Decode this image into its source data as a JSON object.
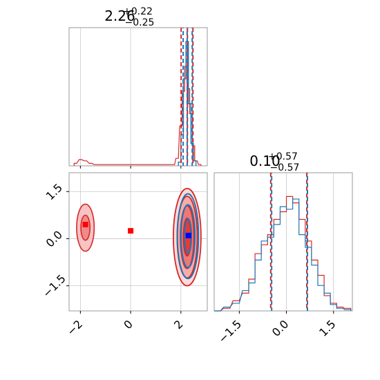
{
  "chart_data": {
    "type": "corner",
    "colors": {
      "series_a": "#d62728",
      "series_b": "#1f77b4",
      "marker_a": "#ff0000",
      "marker_b": "#0000ff"
    },
    "series": [
      {
        "color_key": "series_a"
      },
      {
        "color_key": "series_b"
      }
    ],
    "panels": {
      "top_left": {
        "title_main": "2.26",
        "title_sup": "+0.22",
        "title_sub": "−0.25",
        "xlim": [
          -2.45,
          3.05
        ],
        "quantiles": {
          "series_a": [
            2.01,
            2.26,
            2.48
          ],
          "series_b": [
            2.09,
            2.25,
            2.45
          ]
        },
        "hist_a": [
          [
            -2.2,
            0.02
          ],
          [
            -2.0,
            0.05
          ],
          [
            -1.8,
            0.04
          ],
          [
            -1.6,
            0.02
          ],
          [
            -1.4,
            0.01
          ],
          [
            1.7,
            0.01
          ],
          [
            1.85,
            0.06
          ],
          [
            2.0,
            0.32
          ],
          [
            2.1,
            0.6
          ],
          [
            2.2,
            0.8
          ],
          [
            2.3,
            0.62
          ],
          [
            2.4,
            0.42
          ],
          [
            2.5,
            0.16
          ],
          [
            2.6,
            0.04
          ],
          [
            2.75,
            0.01
          ]
        ],
        "hist_b": [
          [
            1.95,
            0.03
          ],
          [
            2.05,
            0.25
          ],
          [
            2.15,
            0.7
          ],
          [
            2.25,
            1.0
          ],
          [
            2.35,
            0.5
          ],
          [
            2.45,
            0.18
          ],
          [
            2.55,
            0.04
          ]
        ]
      },
      "bottom_left": {
        "xlim": [
          -2.45,
          3.05
        ],
        "ylim": [
          -2.3,
          2.1
        ],
        "xticks": [
          -2,
          0,
          2
        ],
        "xtick_labels": [
          "−2",
          "0",
          "2"
        ],
        "yticks": [
          -1.5,
          0.0,
          1.5
        ],
        "ytick_labels": [
          "−1.5",
          "0.0",
          "1.5"
        ],
        "markers": [
          {
            "x": -1.8,
            "y": 0.45,
            "color_key": "marker_a"
          },
          {
            "x": 0.0,
            "y": 0.25,
            "color_key": "marker_a"
          },
          {
            "x": 2.3,
            "y": 0.1,
            "color_key": "marker_b"
          }
        ],
        "blob_a_main": {
          "cx": 2.25,
          "cy": 0.05,
          "levels": [
            [
              0.55,
              1.55
            ],
            [
              0.4,
              1.3
            ],
            [
              0.27,
              1.0
            ],
            [
              0.15,
              0.6
            ]
          ]
        },
        "blob_a_small": {
          "cx": -1.8,
          "cy": 0.35,
          "levels": [
            [
              0.35,
              0.75
            ],
            [
              0.18,
              0.4
            ]
          ]
        },
        "blob_b_main": {
          "cx": 2.28,
          "cy": 0.08,
          "levels": [
            [
              0.42,
              1.35
            ],
            [
              0.28,
              1.0
            ],
            [
              0.14,
              0.55
            ]
          ]
        }
      },
      "bottom_right": {
        "title_main": "0.10",
        "title_sup": "+0.57",
        "title_sub": "−0.57",
        "xlim": [
          -2.3,
          2.1
        ],
        "xticks": [
          -1.5,
          0.0,
          1.5
        ],
        "xtick_labels": [
          "−1.5",
          "0.0",
          "1.5"
        ],
        "quantiles": {
          "series_a": [
            -0.5,
            0.65
          ],
          "series_b": [
            -0.47,
            0.67
          ]
        },
        "hist_a": [
          [
            -2.2,
            0.0
          ],
          [
            -1.9,
            0.02
          ],
          [
            -1.6,
            0.08
          ],
          [
            -1.3,
            0.14
          ],
          [
            -1.1,
            0.25
          ],
          [
            -0.9,
            0.45
          ],
          [
            -0.7,
            0.52
          ],
          [
            -0.5,
            0.6
          ],
          [
            -0.3,
            0.72
          ],
          [
            -0.1,
            0.78
          ],
          [
            0.1,
            0.9
          ],
          [
            0.3,
            0.85
          ],
          [
            0.5,
            0.72
          ],
          [
            0.7,
            0.55
          ],
          [
            0.9,
            0.4
          ],
          [
            1.1,
            0.28
          ],
          [
            1.3,
            0.12
          ],
          [
            1.5,
            0.06
          ],
          [
            1.7,
            0.03
          ],
          [
            1.95,
            0.02
          ]
        ],
        "hist_b": [
          [
            -2.2,
            0.0
          ],
          [
            -1.9,
            0.03
          ],
          [
            -1.6,
            0.06
          ],
          [
            -1.3,
            0.16
          ],
          [
            -1.1,
            0.22
          ],
          [
            -0.9,
            0.4
          ],
          [
            -0.7,
            0.55
          ],
          [
            -0.5,
            0.58
          ],
          [
            -0.3,
            0.68
          ],
          [
            -0.1,
            0.82
          ],
          [
            0.1,
            0.8
          ],
          [
            0.3,
            0.88
          ],
          [
            0.5,
            0.6
          ],
          [
            0.7,
            0.5
          ],
          [
            0.9,
            0.36
          ],
          [
            1.1,
            0.2
          ],
          [
            1.3,
            0.14
          ],
          [
            1.5,
            0.05
          ],
          [
            1.7,
            0.02
          ],
          [
            1.95,
            0.01
          ]
        ]
      }
    }
  }
}
